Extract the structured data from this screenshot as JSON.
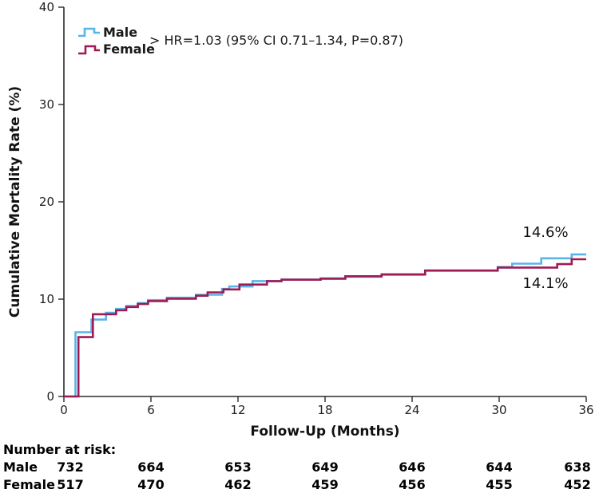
{
  "chart_data": {
    "type": "line",
    "subtype": "step-survival-curve",
    "title": "",
    "xlabel": "Follow-Up (Months)",
    "ylabel": "Cumulative Mortality Rate (%)",
    "xlim": [
      0,
      36
    ],
    "ylim": [
      0,
      40
    ],
    "xticks": [
      0,
      6,
      12,
      18,
      24,
      30,
      36
    ],
    "yticks": [
      0,
      10,
      20,
      30,
      40
    ],
    "grid": false,
    "legend_position": "top-left-inside",
    "annotation": "> HR=1.03 (95% CI 0.71–1.34, P=0.87)",
    "series": [
      {
        "name": "Male",
        "color": "#58b5e8",
        "end_label": "14.6%",
        "steps": [
          [
            0,
            0
          ],
          [
            0.8,
            6.6
          ],
          [
            1.9,
            7.9
          ],
          [
            2.9,
            8.6
          ],
          [
            3.6,
            9.0
          ],
          [
            4.3,
            9.3
          ],
          [
            5.1,
            9.6
          ],
          [
            5.8,
            9.9
          ],
          [
            7.1,
            10.15
          ],
          [
            9.1,
            10.45
          ],
          [
            10.9,
            11.05
          ],
          [
            11.4,
            11.3
          ],
          [
            13.0,
            11.85
          ],
          [
            15.0,
            12.0
          ],
          [
            17.7,
            12.15
          ],
          [
            19.4,
            12.3
          ],
          [
            21.9,
            12.5
          ],
          [
            24.9,
            12.9
          ],
          [
            29.9,
            13.3
          ],
          [
            30.9,
            13.65
          ],
          [
            32.9,
            14.2
          ],
          [
            35.0,
            14.6
          ]
        ],
        "x_end": 36
      },
      {
        "name": "Female",
        "color": "#9e1a55",
        "end_label": "14.1%",
        "steps": [
          [
            0,
            0
          ],
          [
            1.0,
            6.1
          ],
          [
            2.0,
            8.45
          ],
          [
            3.6,
            8.85
          ],
          [
            4.3,
            9.2
          ],
          [
            5.1,
            9.5
          ],
          [
            5.8,
            9.8
          ],
          [
            7.1,
            10.05
          ],
          [
            9.1,
            10.35
          ],
          [
            9.9,
            10.7
          ],
          [
            11.0,
            11.0
          ],
          [
            12.1,
            11.5
          ],
          [
            14.0,
            11.85
          ],
          [
            15.0,
            12.0
          ],
          [
            17.7,
            12.1
          ],
          [
            19.4,
            12.35
          ],
          [
            21.9,
            12.55
          ],
          [
            24.9,
            12.95
          ],
          [
            29.9,
            13.25
          ],
          [
            34.0,
            13.6
          ],
          [
            35.0,
            14.1
          ]
        ],
        "x_end": 36
      }
    ],
    "number_at_risk": {
      "title": "Number at risk:",
      "times": [
        0,
        6,
        12,
        18,
        24,
        30,
        36
      ],
      "rows": [
        {
          "label": "Male",
          "values": [
            732,
            664,
            653,
            649,
            646,
            644,
            638
          ]
        },
        {
          "label": "Female",
          "values": [
            517,
            470,
            462,
            459,
            456,
            455,
            452
          ]
        }
      ]
    }
  }
}
